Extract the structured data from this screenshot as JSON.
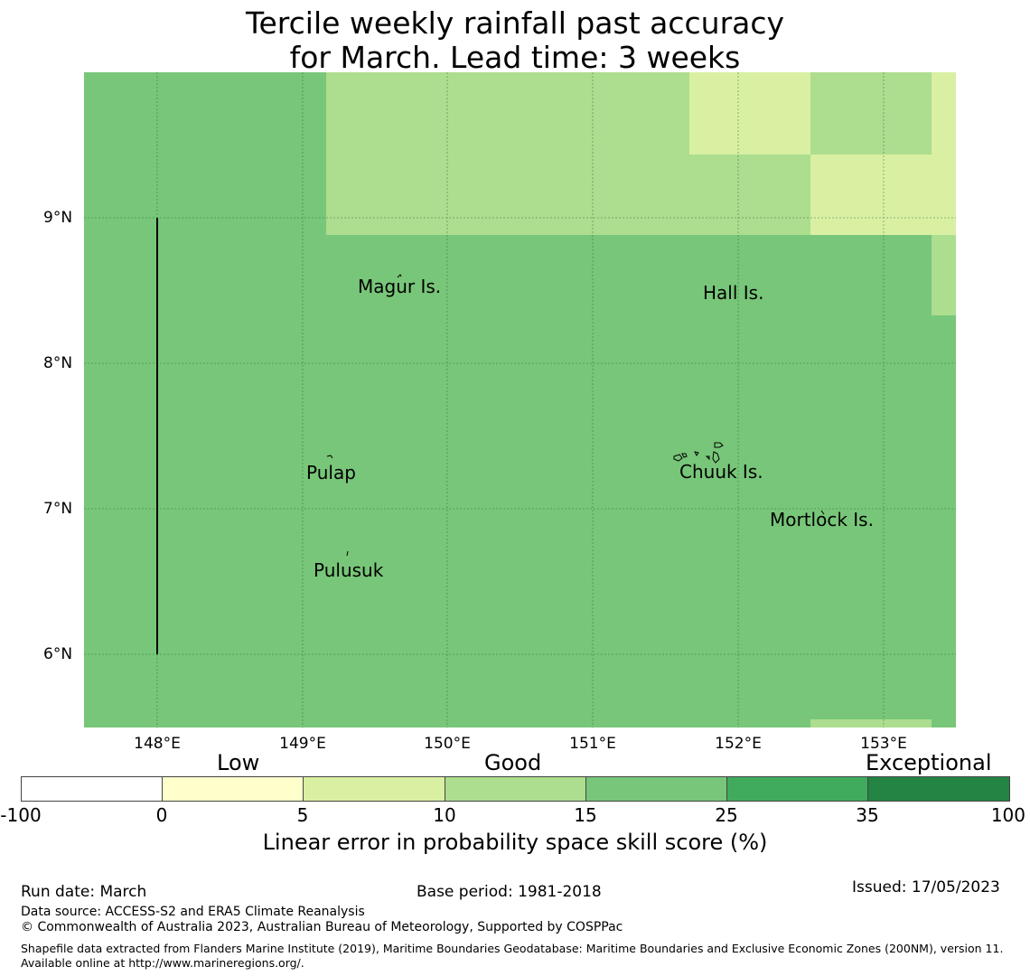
{
  "title": {
    "line1": "Tercile weekly rainfall past accuracy",
    "line2": "for March. Lead time: 3 weeks"
  },
  "map": {
    "lat_labels": [
      "9°N",
      "8°N",
      "7°N",
      "6°N"
    ],
    "lon_labels": [
      "148°E",
      "149°E",
      "150°E",
      "151°E",
      "152°E",
      "153°E"
    ],
    "places": [
      "Magur Is.",
      "Hall Is.",
      "Pulap",
      "Chuuk Is.",
      "Mortlock Is.",
      "Pulusuk"
    ],
    "background_color": "#78c679",
    "patch_colors": {
      "light": "#addd8e",
      "pale": "#d9f0a3"
    }
  },
  "colorbar": {
    "categories": [
      "Low",
      "Good",
      "Exceptional"
    ],
    "ticks": [
      "-100",
      "0",
      "5",
      "10",
      "15",
      "25",
      "35",
      "100"
    ],
    "colors": [
      "#ffffff",
      "#ffffcc",
      "#d9f0a3",
      "#addd8e",
      "#78c679",
      "#41ab5d",
      "#238443"
    ],
    "title": "Linear error in probability space skill score (%)"
  },
  "footer": {
    "run_date": "Run date: March",
    "base_period": "Base period: 1981-2018",
    "issued": "Issued: 17/05/2023",
    "data_source": "Data source: ACCESS-S2 and ERA5 Climate Reanalysis",
    "copyright": "© Commonwealth of Australia 2023, Australian Bureau of Meteorology, Supported by COSPPac",
    "shapefile": "Shapefile data extracted from Flanders Marine Institute (2019), Maritime Boundaries Geodatabase: Maritime Boundaries and Exclusive Economic Zones (200NM), version 11. Available online at http://www.marineregions.org/."
  }
}
